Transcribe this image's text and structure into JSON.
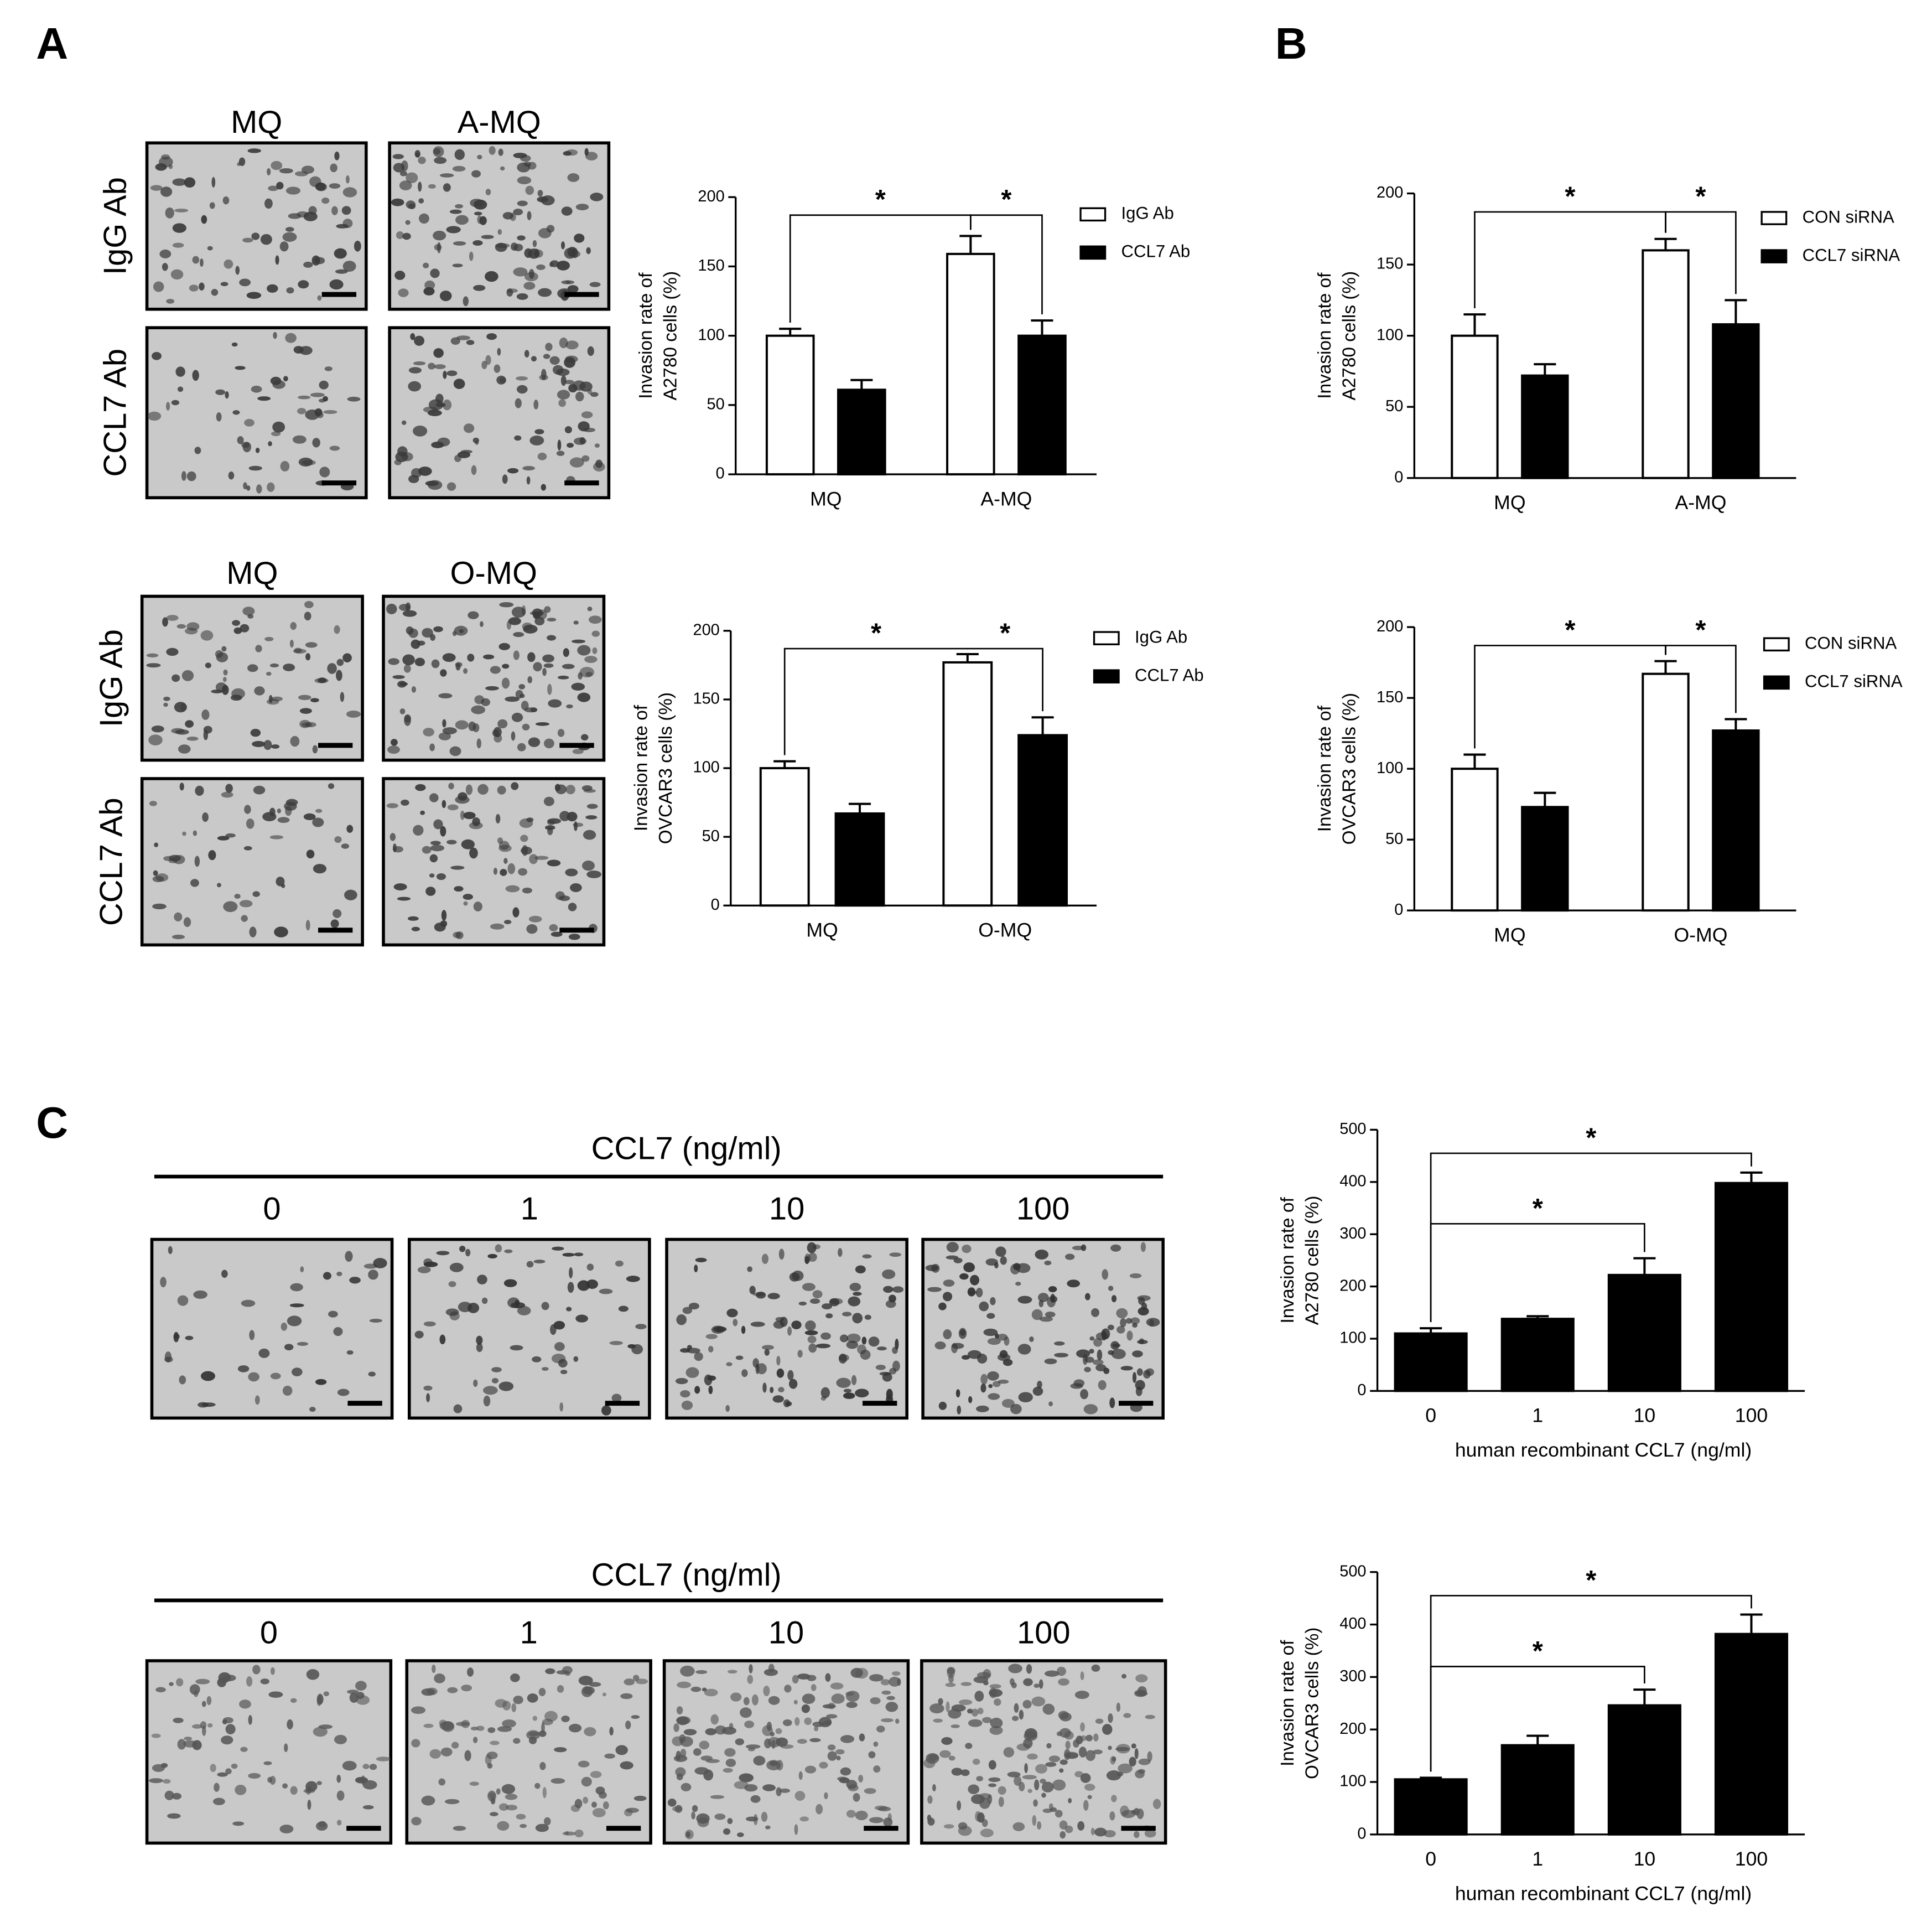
{
  "panels": [
    {
      "label": "A"
    },
    {
      "label": "B"
    },
    {
      "label": "C"
    }
  ],
  "micrographs": [
    {
      "columns": [
        "MQ",
        "A-MQ"
      ],
      "rows": [
        "IgG Ab",
        "CCL7 Ab"
      ]
    },
    {
      "columns": [
        "MQ",
        "O-MQ"
      ],
      "rows": [
        "IgG Ab",
        "CCL7 Ab"
      ]
    },
    {
      "title": "CCL7 (ng/ml)",
      "columns": [
        "0",
        "1",
        "10",
        "100"
      ]
    },
    {
      "title": "CCL7 (ng/ml)",
      "columns": [
        "0",
        "1",
        "10",
        "100"
      ]
    }
  ],
  "chart_data": [
    {
      "type": "bar",
      "ylabel": [
        "Invasion rate of",
        "A2780 cells  (%)"
      ],
      "categories": [
        "MQ",
        "A-MQ"
      ],
      "series": [
        {
          "name": "IgG Ab",
          "color": "#ffffff",
          "values": [
            100,
            159
          ],
          "errors": [
            5,
            13
          ]
        },
        {
          "name": "CCL7 Ab",
          "color": "#000000",
          "values": [
            61,
            100
          ],
          "errors": [
            7,
            11
          ]
        }
      ],
      "ylim": [
        0,
        200
      ],
      "yticks": [
        0,
        50,
        100,
        150,
        200
      ],
      "significance": [
        "*",
        "*"
      ]
    },
    {
      "type": "bar",
      "ylabel": [
        "Invasion rate of",
        "OVCAR3 cells  (%)"
      ],
      "categories": [
        "MQ",
        "O-MQ"
      ],
      "series": [
        {
          "name": "IgG Ab",
          "color": "#ffffff",
          "values": [
            100,
            177
          ],
          "errors": [
            5,
            6
          ]
        },
        {
          "name": "CCL7 Ab",
          "color": "#000000",
          "values": [
            67,
            124
          ],
          "errors": [
            7,
            13
          ]
        }
      ],
      "ylim": [
        0,
        200
      ],
      "yticks": [
        0,
        50,
        100,
        150,
        200
      ],
      "significance": [
        "*",
        "*"
      ]
    },
    {
      "type": "bar",
      "ylabel": [
        "Invasion rate of",
        "A2780 cells  (%)"
      ],
      "categories": [
        "MQ",
        "A-MQ"
      ],
      "series": [
        {
          "name": "CON siRNA",
          "color": "#ffffff",
          "values": [
            100,
            160
          ],
          "errors": [
            15,
            8
          ]
        },
        {
          "name": "CCL7 siRNA",
          "color": "#000000",
          "values": [
            72,
            108
          ],
          "errors": [
            8,
            17
          ]
        }
      ],
      "ylim": [
        0,
        200
      ],
      "yticks": [
        0,
        50,
        100,
        150,
        200
      ],
      "significance": [
        "*",
        "*"
      ]
    },
    {
      "type": "bar",
      "ylabel": [
        "Invasion rate of",
        "OVCAR3 cells  (%)"
      ],
      "categories": [
        "MQ",
        "O-MQ"
      ],
      "series": [
        {
          "name": "CON siRNA",
          "color": "#ffffff",
          "values": [
            100,
            167
          ],
          "errors": [
            10,
            9
          ]
        },
        {
          "name": "CCL7 siRNA",
          "color": "#000000",
          "values": [
            73,
            127
          ],
          "errors": [
            10,
            8
          ]
        }
      ],
      "ylim": [
        0,
        200
      ],
      "yticks": [
        0,
        50,
        100,
        150,
        200
      ],
      "significance": [
        "*",
        "*"
      ]
    },
    {
      "type": "bar",
      "ylabel": [
        "Invasion rate of",
        "A2780 cells  (%)"
      ],
      "xlabel": "human recombinant CCL7 (ng/ml)",
      "categories": [
        "0",
        "1",
        "10",
        "100"
      ],
      "series": [
        {
          "color": "#000000",
          "values": [
            110,
            138,
            222,
            398
          ],
          "errors": [
            10,
            5,
            32,
            20
          ]
        }
      ],
      "ylim": [
        0,
        500
      ],
      "yticks": [
        0,
        100,
        200,
        300,
        400,
        500
      ],
      "significance": [
        "*",
        "*"
      ]
    },
    {
      "type": "bar",
      "ylabel": [
        "Invasion rate of",
        "OVCAR3 cells  (%)"
      ],
      "xlabel": "human recombinant CCL7 (ng/ml)",
      "categories": [
        "0",
        "1",
        "10",
        "100"
      ],
      "series": [
        {
          "color": "#000000",
          "values": [
            105,
            170,
            246,
            382
          ],
          "errors": [
            3,
            18,
            30,
            37
          ]
        }
      ],
      "ylim": [
        0,
        500
      ],
      "yticks": [
        0,
        100,
        200,
        300,
        400,
        500
      ],
      "significance": [
        "*",
        "*"
      ]
    }
  ]
}
